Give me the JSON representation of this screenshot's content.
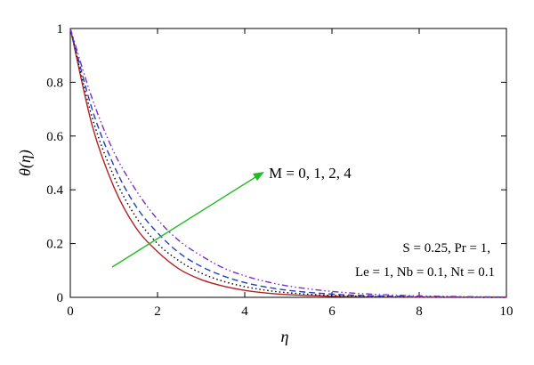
{
  "chart_data": {
    "type": "line",
    "xlabel": "η",
    "ylabel": "θ(η)",
    "xlim": [
      0,
      10
    ],
    "ylim": [
      0,
      1
    ],
    "x_ticks": [
      "0",
      "2",
      "4",
      "6",
      "8",
      "10"
    ],
    "y_ticks": [
      "0",
      "0.2",
      "0.4",
      "0.6",
      "0.8",
      "1"
    ],
    "grid": false,
    "x": [
      0,
      0.5,
      1,
      1.5,
      2,
      2.5,
      3,
      3.5,
      4,
      4.5,
      5,
      6,
      7,
      8,
      9,
      10
    ],
    "series": [
      {
        "param": "M = 0",
        "color": "#b22222",
        "dash": "solid",
        "values": [
          1.0,
          0.64,
          0.41,
          0.26,
          0.17,
          0.105,
          0.066,
          0.042,
          0.026,
          0.016,
          0.01,
          0.004,
          0.0015,
          0.0005,
          0.0002,
          0.0
        ]
      },
      {
        "param": "M = 1",
        "color": "#000000",
        "dash": "dotted",
        "values": [
          1.0,
          0.67,
          0.45,
          0.3,
          0.2,
          0.135,
          0.09,
          0.06,
          0.04,
          0.026,
          0.017,
          0.007,
          0.003,
          0.0012,
          0.0005,
          0.0002
        ]
      },
      {
        "param": "M = 2",
        "color": "#1f3fbf",
        "dash": "dashed",
        "values": [
          1.0,
          0.7,
          0.49,
          0.34,
          0.24,
          0.165,
          0.115,
          0.08,
          0.055,
          0.038,
          0.026,
          0.012,
          0.0055,
          0.0025,
          0.001,
          0.0005
        ]
      },
      {
        "param": "M = 4",
        "color": "#7b2fbf",
        "dash": "dash-dot-dot",
        "values": [
          1.0,
          0.74,
          0.54,
          0.4,
          0.29,
          0.21,
          0.155,
          0.11,
          0.08,
          0.058,
          0.042,
          0.022,
          0.011,
          0.0055,
          0.0028,
          0.0014
        ]
      }
    ],
    "annotations": {
      "arrow_label": "M = 0, 1, 2, 4",
      "arrow_color": "#22bb22",
      "param_line1": "S = 0.25, Pr = 1,",
      "param_line2": "Le = 1, Nb = 0.1, Nt = 0.1"
    }
  }
}
